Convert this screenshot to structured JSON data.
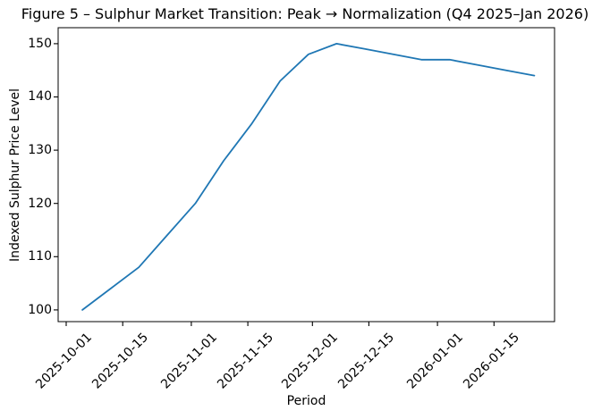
{
  "chart_data": {
    "type": "line",
    "title": "Figure 5 – Sulphur Market Transition: Peak → Normalization (Q4 2025–Jan 2026)",
    "xlabel": "Period",
    "ylabel": "Indexed Sulphur Price Level",
    "x": [
      "2025-10-05",
      "2025-10-12",
      "2025-10-19",
      "2025-10-26",
      "2025-11-02",
      "2025-11-09",
      "2025-11-16",
      "2025-11-23",
      "2025-11-30",
      "2025-12-07",
      "2025-12-14",
      "2025-12-21",
      "2025-12-28",
      "2026-01-04",
      "2026-01-11",
      "2026-01-18",
      "2026-01-25"
    ],
    "values": [
      100,
      104,
      108,
      114,
      120,
      128,
      135,
      143,
      148,
      150,
      149,
      148,
      147,
      147,
      146,
      145,
      144
    ],
    "x_tick_labels": [
      "2025-10-01",
      "2025-10-15",
      "2025-11-01",
      "2025-11-15",
      "2025-12-01",
      "2025-12-15",
      "2026-01-01",
      "2026-01-15"
    ],
    "y_tick_labels": [
      "100",
      "110",
      "120",
      "130",
      "140",
      "150"
    ],
    "xlim": [
      "2025-09-29",
      "2026-01-30"
    ],
    "ylim": [
      97.8,
      153.0
    ],
    "line_color": "#1f77b4",
    "axis_color": "#000000",
    "grid": false,
    "legend": "none"
  }
}
